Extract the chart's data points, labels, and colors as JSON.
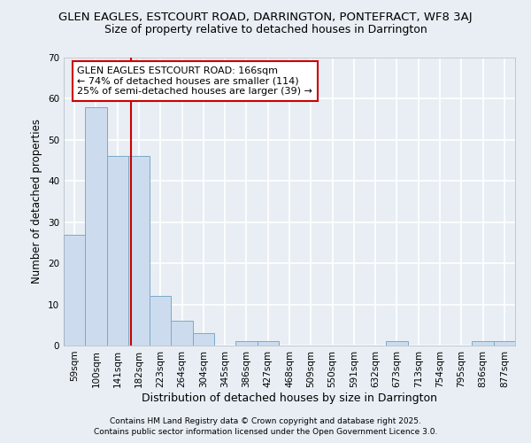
{
  "title1": "GLEN EAGLES, ESTCOURT ROAD, DARRINGTON, PONTEFRACT, WF8 3AJ",
  "title2": "Size of property relative to detached houses in Darrington",
  "xlabel": "Distribution of detached houses by size in Darrington",
  "ylabel": "Number of detached properties",
  "categories": [
    "59sqm",
    "100sqm",
    "141sqm",
    "182sqm",
    "223sqm",
    "264sqm",
    "304sqm",
    "345sqm",
    "386sqm",
    "427sqm",
    "468sqm",
    "509sqm",
    "550sqm",
    "591sqm",
    "632sqm",
    "673sqm",
    "713sqm",
    "754sqm",
    "795sqm",
    "836sqm",
    "877sqm"
  ],
  "values": [
    27,
    58,
    46,
    46,
    12,
    6,
    3,
    0,
    1,
    1,
    0,
    0,
    0,
    0,
    0,
    1,
    0,
    0,
    0,
    1,
    1
  ],
  "bar_color": "#ccdcee",
  "bar_edge_color": "#7aaac8",
  "ylim": [
    0,
    70
  ],
  "yticks": [
    0,
    10,
    20,
    30,
    40,
    50,
    60,
    70
  ],
  "annotation_text": "GLEN EAGLES ESTCOURT ROAD: 166sqm\n← 74% of detached houses are smaller (114)\n25% of semi-detached houses are larger (39) →",
  "annotation_box_color": "#ffffff",
  "annotation_border_color": "#cc0000",
  "footer1": "Contains HM Land Registry data © Crown copyright and database right 2025.",
  "footer2": "Contains public sector information licensed under the Open Government Licence 3.0.",
  "background_color": "#e8eef4",
  "grid_color": "#ffffff",
  "title_fontsize": 9.5,
  "subtitle_fontsize": 9.0,
  "xlabel_fontsize": 9.0,
  "ylabel_fontsize": 8.5,
  "tick_fontsize": 7.5,
  "annot_fontsize": 8.0,
  "footer_fontsize": 6.5,
  "bar_linewidth": 0.7
}
